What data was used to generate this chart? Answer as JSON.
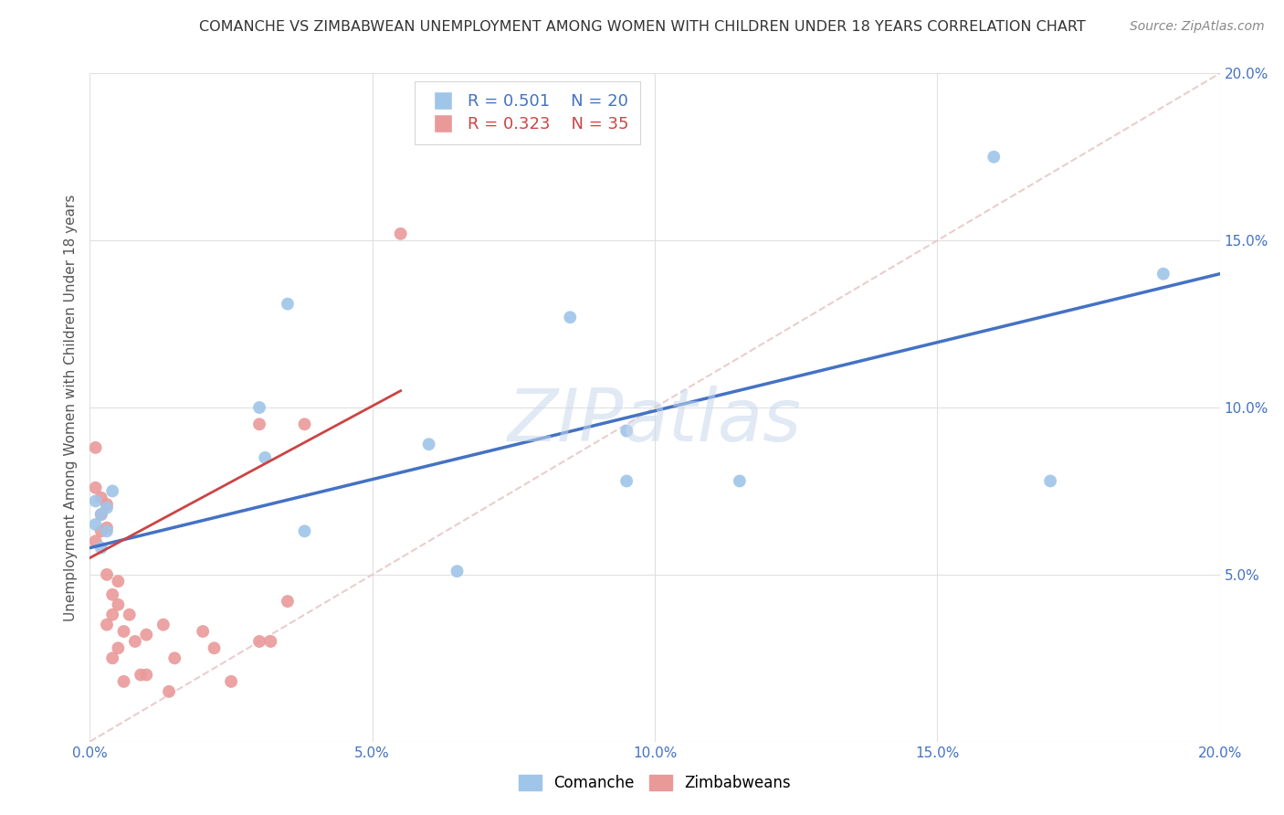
{
  "title": "COMANCHE VS ZIMBABWEAN UNEMPLOYMENT AMONG WOMEN WITH CHILDREN UNDER 18 YEARS CORRELATION CHART",
  "source": "Source: ZipAtlas.com",
  "ylabel": "Unemployment Among Women with Children Under 18 years",
  "xlim": [
    0.0,
    0.2
  ],
  "ylim": [
    0.0,
    0.2
  ],
  "comanche_x": [
    0.001,
    0.001,
    0.002,
    0.002,
    0.003,
    0.003,
    0.004,
    0.03,
    0.031,
    0.035,
    0.038,
    0.06,
    0.065,
    0.085,
    0.095,
    0.095,
    0.115,
    0.16,
    0.17,
    0.19
  ],
  "comanche_y": [
    0.065,
    0.072,
    0.068,
    0.058,
    0.07,
    0.063,
    0.075,
    0.1,
    0.085,
    0.131,
    0.063,
    0.089,
    0.051,
    0.127,
    0.093,
    0.078,
    0.078,
    0.175,
    0.078,
    0.14
  ],
  "zimbabwean_x": [
    0.001,
    0.001,
    0.001,
    0.002,
    0.002,
    0.002,
    0.003,
    0.003,
    0.003,
    0.003,
    0.004,
    0.004,
    0.004,
    0.005,
    0.005,
    0.005,
    0.006,
    0.006,
    0.007,
    0.008,
    0.009,
    0.01,
    0.01,
    0.013,
    0.014,
    0.015,
    0.02,
    0.022,
    0.025,
    0.03,
    0.03,
    0.032,
    0.035,
    0.038,
    0.055
  ],
  "zimbabwean_y": [
    0.088,
    0.076,
    0.06,
    0.073,
    0.068,
    0.063,
    0.071,
    0.064,
    0.05,
    0.035,
    0.044,
    0.038,
    0.025,
    0.048,
    0.041,
    0.028,
    0.033,
    0.018,
    0.038,
    0.03,
    0.02,
    0.032,
    0.02,
    0.035,
    0.015,
    0.025,
    0.033,
    0.028,
    0.018,
    0.095,
    0.03,
    0.03,
    0.042,
    0.095,
    0.152
  ],
  "comanche_color": "#9fc5e8",
  "zimbabwean_color": "#ea9999",
  "comanche_line_color": "#4472c4",
  "zimbabwean_line_color": "#cc4444",
  "diagonal_color": "#e8c8c8",
  "R_comanche": "0.501",
  "N_comanche": "20",
  "R_zimbabwean": "0.323",
  "N_zimbabwean": "35",
  "watermark": "ZIPatlas",
  "background_color": "#ffffff",
  "grid_color": "#e0e0e0",
  "xticks": [
    0.0,
    0.05,
    0.1,
    0.15,
    0.2
  ],
  "yticks_right": [
    0.05,
    0.1,
    0.15,
    0.2
  ],
  "comanche_trendline": [
    0.0,
    0.2,
    0.058,
    0.14
  ],
  "zimbabwean_trendline": [
    0.0,
    0.055,
    0.055,
    0.105
  ]
}
